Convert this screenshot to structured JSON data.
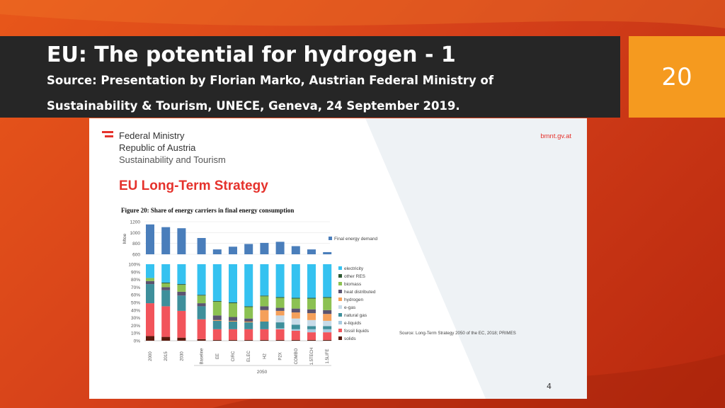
{
  "slide": {
    "title": "EU: The potential for hydrogen - 1",
    "subtitle": "Source: Presentation by Florian Marko, Austrian Federal Ministry of Sustainability & Tourism, UNECE, Geneva, 24 September 2019.",
    "number": "20"
  },
  "panel": {
    "ministry_line1": "Federal Ministry",
    "ministry_line2": "Republic of Austria",
    "ministry_line3": "Sustainability and Tourism",
    "site": "bmnt.gv.at",
    "heading": "EU Long-Term Strategy",
    "page": "4"
  },
  "colors": {
    "demand": "#4a7ebb",
    "electricity": "#35c2f0",
    "other_res": "#2e5a34",
    "biomass": "#8cc152",
    "heat": "#5b5470",
    "hydrogen": "#f5a05a",
    "egas": "#c8dbe8",
    "natgas": "#3e8f9b",
    "eliquids": "#a8cbe0",
    "fossil": "#f2545b",
    "solids": "#5a1a0e"
  },
  "chart_data": {
    "type": "bar",
    "title": "Figure 20: Share of energy carriers in final energy consumption",
    "source": "Source: Long-Term Strategy 2050 of the EC, 2018; PRIMES",
    "categories": [
      "2000",
      "2015",
      "2030",
      "Baseline",
      "EE",
      "CIRC",
      "ELEC",
      "H2",
      "P2X",
      "COMBO",
      "1.5TECH",
      "1.5LIFE"
    ],
    "group_label": "2050",
    "demand": {
      "ylabel": "Mtoe",
      "ylim": [
        600,
        1200
      ],
      "yticks": [
        "600",
        "800",
        "1000",
        "1200"
      ],
      "legend": "Final energy demand",
      "values": [
        1150,
        1100,
        1080,
        900,
        690,
        740,
        790,
        810,
        830,
        750,
        690,
        640
      ]
    },
    "shares": {
      "ylim": [
        0,
        100
      ],
      "yticks": [
        "0%",
        "10%",
        "20%",
        "30%",
        "40%",
        "50%",
        "60%",
        "70%",
        "80%",
        "90%",
        "100%"
      ],
      "series": [
        {
          "name": "solids",
          "key": "solids",
          "values": [
            6,
            5,
            4,
            2,
            1,
            1,
            1,
            1,
            1,
            1,
            1,
            1
          ]
        },
        {
          "name": "fossil liquids",
          "key": "fossil",
          "values": [
            43,
            40,
            35,
            26,
            14,
            14,
            14,
            14,
            14,
            12,
            10,
            10
          ]
        },
        {
          "name": "e-liquids",
          "key": "eliquids",
          "values": [
            0,
            0,
            0,
            0,
            0,
            0,
            0,
            0,
            1,
            2,
            4,
            4
          ]
        },
        {
          "name": "natural gas",
          "key": "natgas",
          "values": [
            25,
            21,
            20,
            17,
            11,
            10,
            9,
            10,
            8,
            6,
            4,
            4
          ]
        },
        {
          "name": "e-gas",
          "key": "egas",
          "values": [
            0,
            0,
            0,
            0,
            0,
            0,
            0,
            0,
            9,
            8,
            8,
            7
          ]
        },
        {
          "name": "hydrogen",
          "key": "hydrogen",
          "values": [
            0,
            0,
            0,
            0,
            1,
            1,
            1,
            15,
            6,
            8,
            9,
            9
          ]
        },
        {
          "name": "heat distributed",
          "key": "heat",
          "values": [
            4,
            4,
            5,
            4,
            6,
            5,
            4,
            5,
            4,
            5,
            5,
            5
          ]
        },
        {
          "name": "biomass",
          "key": "biomass",
          "values": [
            4,
            5,
            9,
            10,
            18,
            18,
            15,
            13,
            13,
            13,
            14,
            16
          ]
        },
        {
          "name": "other RES",
          "key": "other_res",
          "values": [
            0,
            1,
            1,
            1,
            1,
            1,
            1,
            1,
            1,
            1,
            1,
            1
          ]
        },
        {
          "name": "electricity",
          "key": "electricity",
          "values": [
            18,
            24,
            26,
            40,
            48,
            50,
            55,
            41,
            43,
            44,
            44,
            43
          ]
        }
      ],
      "legend_order": [
        "electricity",
        "other RES",
        "biomass",
        "heat distributed",
        "hydrogen",
        "e-gas",
        "natural gas",
        "e-liquids",
        "fossil liquids",
        "solids"
      ],
      "legend_keys": [
        "electricity",
        "other_res",
        "biomass",
        "heat",
        "hydrogen",
        "egas",
        "natgas",
        "eliquids",
        "fossil",
        "solids"
      ]
    }
  }
}
